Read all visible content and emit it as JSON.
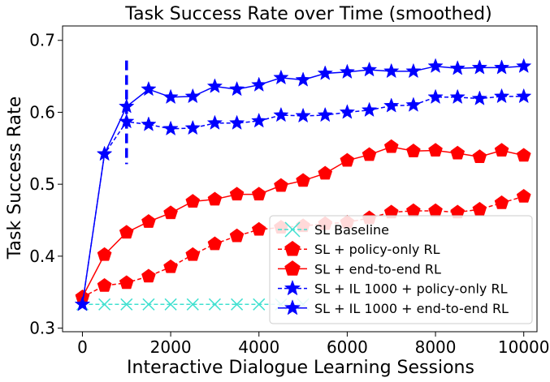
{
  "chart_data": {
    "type": "line",
    "title": "Task Success Rate over Time (smoothed)",
    "xlabel": "Interactive Dialogue Learning Sessions",
    "ylabel": "Task Success Rate",
    "xlim": [
      -450,
      10300
    ],
    "ylim": [
      0.295,
      0.72
    ],
    "xticks": [
      0,
      2000,
      4000,
      6000,
      8000,
      10000
    ],
    "yticks": [
      0.3,
      0.4,
      0.5,
      0.6,
      0.7
    ],
    "ytick_labels": [
      "0.3",
      "0.4",
      "0.5",
      "0.6",
      "0.7"
    ],
    "grid": false,
    "legend_position": "lower-right",
    "x": [
      0,
      500,
      1000,
      1500,
      2000,
      2500,
      3000,
      3500,
      4000,
      4500,
      5000,
      5500,
      6000,
      6500,
      7000,
      7500,
      8000,
      8500,
      9000,
      9500,
      10000
    ],
    "annotations": [
      {
        "type": "vertical-dashed-line",
        "x": 1000,
        "y_range": [
          0.528,
          0.672
        ],
        "color": "#0000ff"
      }
    ],
    "series": [
      {
        "name": "SL Baseline",
        "color": "#40e0d0",
        "line_style": "dashed",
        "marker": "x",
        "x": [
          0,
          500,
          1000,
          1500,
          2000,
          2500,
          3000,
          3500,
          4000,
          4500,
          5000
        ],
        "values": [
          0.333,
          0.333,
          0.333,
          0.333,
          0.333,
          0.333,
          0.333,
          0.333,
          0.333,
          0.333,
          0.333
        ]
      },
      {
        "name": "SL + policy-only RL",
        "color": "#ff0000",
        "line_style": "dashed",
        "marker": "pentagon",
        "values": [
          0.343,
          0.359,
          0.363,
          0.372,
          0.385,
          0.402,
          0.417,
          0.428,
          0.437,
          0.44,
          0.442,
          0.445,
          0.447,
          0.453,
          0.461,
          0.463,
          0.463,
          0.461,
          0.465,
          0.474,
          0.483
        ]
      },
      {
        "name": "SL + end-to-end RL",
        "color": "#ff0000",
        "line_style": "solid",
        "marker": "pentagon",
        "values": [
          0.343,
          0.402,
          0.433,
          0.448,
          0.46,
          0.476,
          0.479,
          0.486,
          0.486,
          0.498,
          0.505,
          0.515,
          0.533,
          0.541,
          0.552,
          0.546,
          0.547,
          0.543,
          0.538,
          0.547,
          0.54
        ]
      },
      {
        "name": "SL + IL 1000 + policy-only RL",
        "color": "#0000ff",
        "line_style": "dashed",
        "marker": "star",
        "values": [
          0.333,
          0.542,
          0.587,
          0.583,
          0.577,
          0.578,
          0.585,
          0.585,
          0.588,
          0.596,
          0.595,
          0.596,
          0.6,
          0.603,
          0.609,
          0.61,
          0.621,
          0.621,
          0.619,
          0.622,
          0.622
        ]
      },
      {
        "name": "SL + IL 1000 + end-to-end RL",
        "color": "#0000ff",
        "line_style": "solid",
        "marker": "star",
        "values": [
          0.333,
          0.542,
          0.608,
          0.632,
          0.621,
          0.622,
          0.636,
          0.632,
          0.638,
          0.648,
          0.645,
          0.654,
          0.656,
          0.659,
          0.657,
          0.657,
          0.664,
          0.661,
          0.662,
          0.662,
          0.664
        ]
      }
    ]
  }
}
